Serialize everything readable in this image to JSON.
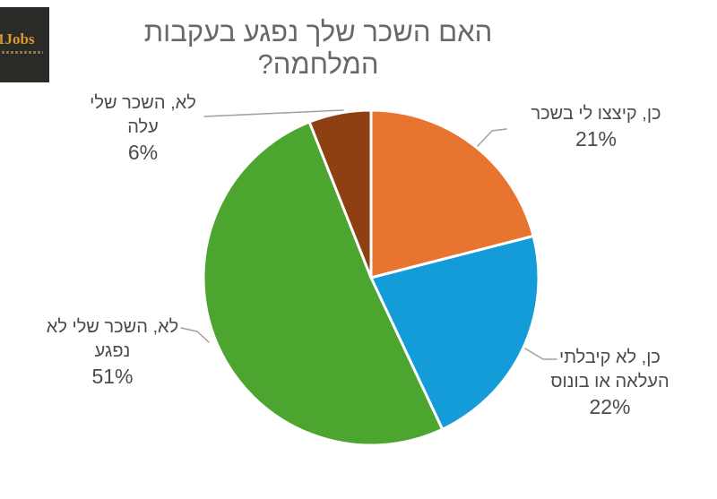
{
  "logo": {
    "text": "1Jobs"
  },
  "chart_data": {
    "type": "pie",
    "title": "האם השכר שלך נפגע בעקבות המלחמה?",
    "start_angle": "top",
    "direction": "clockwise",
    "legend": "none",
    "labels_layout": "outside-with-leader-lines",
    "slices": [
      {
        "name": "salary-cut",
        "label": "כן, קיצצו לי בשכר",
        "value": 21,
        "pct_label": "21%",
        "color": "#E7742F"
      },
      {
        "name": "no-raise-or-bonus",
        "label": "כן, לא קיבלתי העלאה או בונוס",
        "value": 22,
        "pct_label": "22%",
        "color": "#149CD8"
      },
      {
        "name": "salary-not-hurt",
        "label": "לא, השכר שלי לא נפגע",
        "value": 51,
        "pct_label": "51%",
        "color": "#4BA52E"
      },
      {
        "name": "salary-increased",
        "label": "לא, השכר שלי עלה",
        "value": 6,
        "pct_label": "6%",
        "color": "#8E4013"
      }
    ]
  },
  "labels": {
    "salary_increased": {
      "line1": "לא, השכר שלי",
      "line2": "עלה",
      "pct": "6%"
    },
    "salary_cut": {
      "line1": "כן, קיצצו לי בשכר",
      "pct": "21%"
    },
    "no_raise": {
      "line1": "כן, לא קיבלתי",
      "line2": "העלאה או בונוס",
      "pct": "22%"
    },
    "not_hurt": {
      "line1": "לא, השכר שלי לא",
      "line2": "נפגע",
      "pct": "51%"
    }
  }
}
